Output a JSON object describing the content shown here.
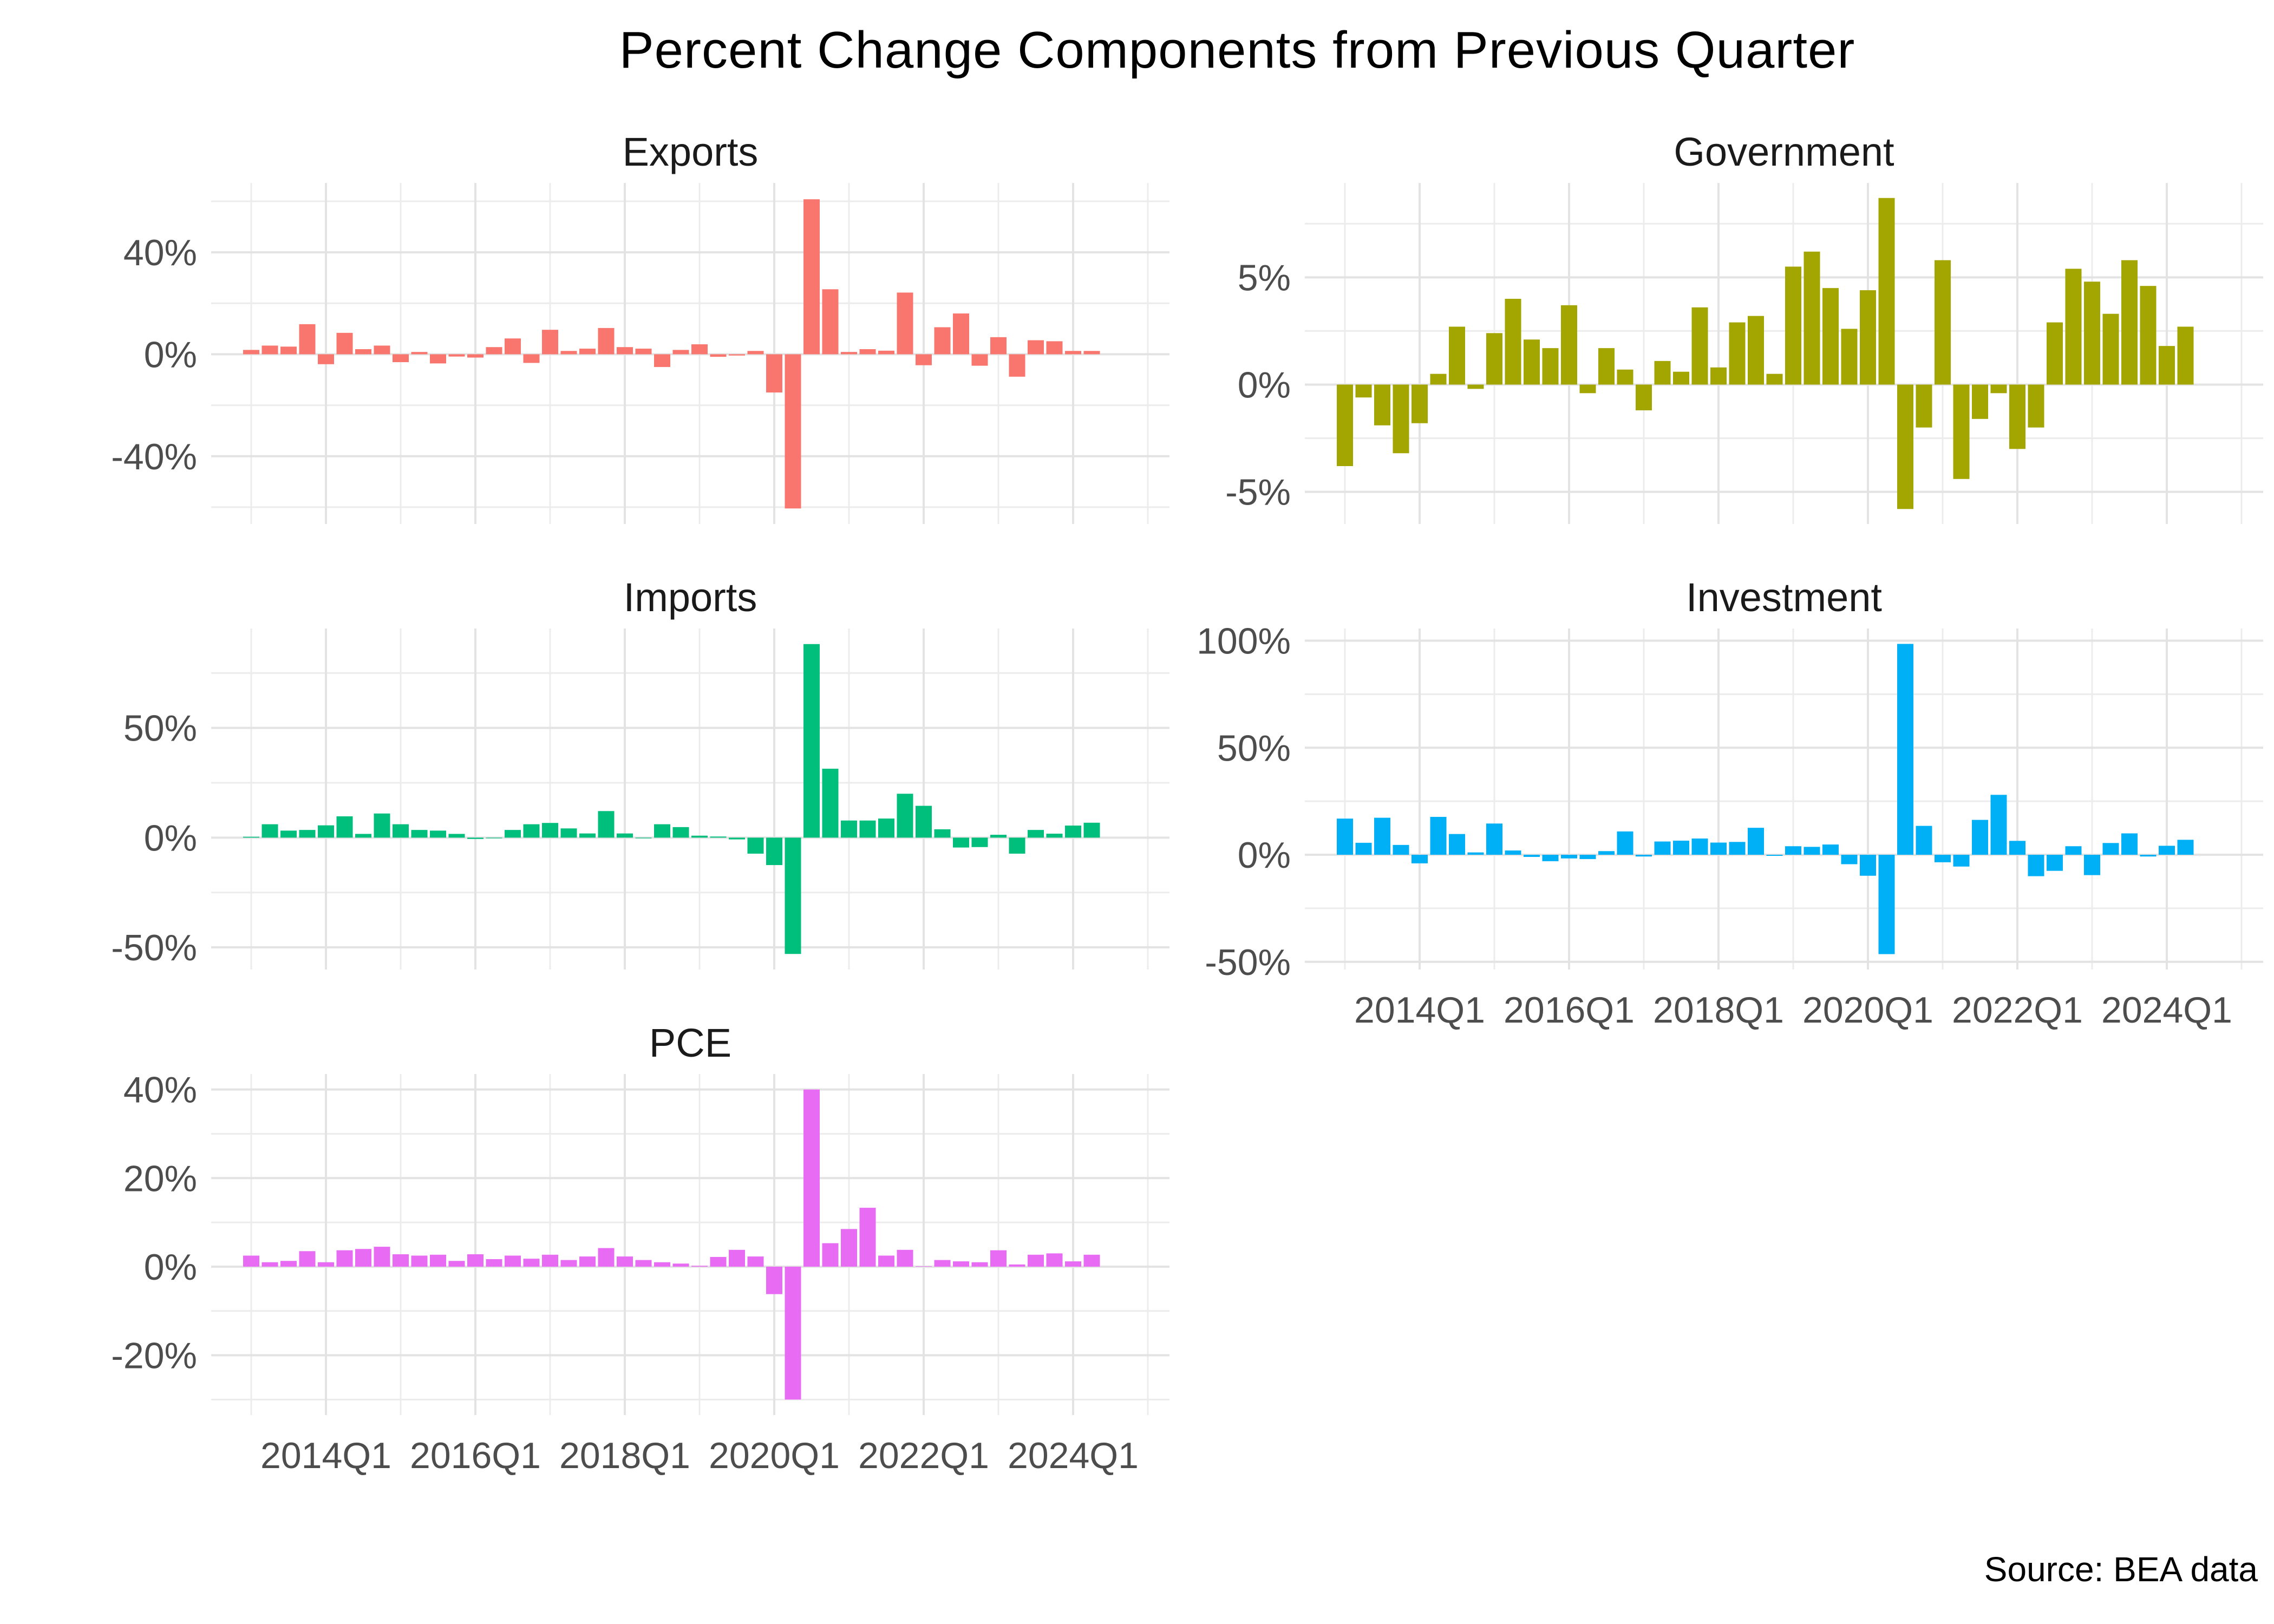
{
  "chart_data": {
    "type": "bar",
    "title": "Percent Change Components from Previous Quarter",
    "source": "Source: BEA data",
    "xlabel": "",
    "ylabel": "",
    "grid": true,
    "legend": "none",
    "facet_layout": "3 rows x 2 cols; Exports,Government / Imports,Investment / PCE,empty",
    "quarters": [
      "2013Q1",
      "2013Q2",
      "2013Q3",
      "2013Q4",
      "2014Q1",
      "2014Q2",
      "2014Q3",
      "2014Q4",
      "2015Q1",
      "2015Q2",
      "2015Q3",
      "2015Q4",
      "2016Q1",
      "2016Q2",
      "2016Q3",
      "2016Q4",
      "2017Q1",
      "2017Q2",
      "2017Q3",
      "2017Q4",
      "2018Q1",
      "2018Q2",
      "2018Q3",
      "2018Q4",
      "2019Q1",
      "2019Q2",
      "2019Q3",
      "2019Q4",
      "2020Q1",
      "2020Q2",
      "2020Q3",
      "2020Q4",
      "2021Q1",
      "2021Q2",
      "2021Q3",
      "2021Q4",
      "2022Q1",
      "2022Q2",
      "2022Q3",
      "2022Q4",
      "2023Q1",
      "2023Q2",
      "2023Q3",
      "2023Q4",
      "2024Q1",
      "2024Q2"
    ],
    "x_tick_labels": [
      "2014Q1",
      "2016Q1",
      "2018Q1",
      "2020Q1",
      "2022Q1",
      "2024Q1"
    ],
    "x_major_years": [
      2014,
      2016,
      2018,
      2020,
      2022,
      2024
    ],
    "x_minor_years": [
      2013,
      2015,
      2017,
      2019,
      2021,
      2023,
      2025
    ],
    "facets": [
      {
        "name": "Exports",
        "color": "#F8766D",
        "row": 0,
        "col": 0,
        "x_axis": false,
        "ylim": [
          -66.6,
          67.2
        ],
        "y_ticks": [
          {
            "value": 40,
            "label": "40%"
          },
          {
            "value": 0,
            "label": "0%"
          },
          {
            "value": -40,
            "label": "-40%"
          }
        ],
        "y_minor": [
          60,
          20,
          -20,
          -60
        ],
        "values": [
          1.7,
          3.4,
          3.0,
          11.8,
          -3.9,
          8.4,
          2.0,
          3.4,
          -3.1,
          0.9,
          -3.6,
          -0.9,
          -1.3,
          2.8,
          6.2,
          -3.4,
          9.6,
          1.3,
          2.2,
          10.3,
          2.8,
          2.2,
          -5.0,
          1.7,
          3.9,
          -1.0,
          -0.5,
          1.3,
          -15.0,
          -60.5,
          60.8,
          25.5,
          0.9,
          2.0,
          1.4,
          24.2,
          -4.3,
          10.6,
          16.0,
          -4.5,
          6.7,
          -8.8,
          5.5,
          5.1,
          1.3,
          1.3
        ]
      },
      {
        "name": "Government",
        "color": "#A3A500",
        "row": 0,
        "col": 1,
        "x_axis": false,
        "ylim": [
          -6.5,
          9.4
        ],
        "y_ticks": [
          {
            "value": 5,
            "label": "5%"
          },
          {
            "value": 0,
            "label": "0%"
          },
          {
            "value": -5,
            "label": "-5%"
          }
        ],
        "y_minor": [
          7.5,
          2.5,
          -2.5
        ],
        "values": [
          -3.8,
          -0.6,
          -1.9,
          -3.2,
          -1.8,
          0.5,
          2.7,
          -0.2,
          2.4,
          4.0,
          2.1,
          1.7,
          3.7,
          -0.4,
          1.7,
          0.7,
          -1.2,
          1.1,
          0.6,
          3.6,
          0.8,
          2.9,
          3.2,
          0.5,
          5.5,
          6.2,
          4.5,
          2.6,
          4.4,
          8.7,
          -5.8,
          -2.0,
          5.8,
          -4.4,
          -1.6,
          -0.4,
          -3.0,
          -2.0,
          2.9,
          5.4,
          4.8,
          3.3,
          5.8,
          4.6,
          1.8,
          2.7
        ]
      },
      {
        "name": "Imports",
        "color": "#00BF7D",
        "row": 1,
        "col": 0,
        "x_axis": false,
        "ylim": [
          -60.1,
          95.3
        ],
        "y_ticks": [
          {
            "value": 50,
            "label": "50%"
          },
          {
            "value": 0,
            "label": "0%"
          },
          {
            "value": -50,
            "label": "-50%"
          }
        ],
        "y_minor": [
          75,
          25,
          -25
        ],
        "values": [
          0.4,
          6.1,
          3.2,
          3.5,
          5.6,
          9.7,
          1.7,
          11.0,
          6.1,
          3.5,
          3.2,
          1.7,
          -0.6,
          -0.3,
          3.5,
          6.1,
          6.7,
          4.2,
          1.9,
          12.1,
          1.9,
          -0.3,
          6.1,
          4.8,
          0.9,
          0.5,
          -0.8,
          -7.3,
          -12.5,
          -53.0,
          88.2,
          31.4,
          7.8,
          7.8,
          8.7,
          20.0,
          14.5,
          3.8,
          -4.5,
          -4.3,
          1.3,
          -7.3,
          3.5,
          1.8,
          5.5,
          6.8
        ]
      },
      {
        "name": "Investment",
        "color": "#00B0F6",
        "row": 1,
        "col": 1,
        "x_axis": true,
        "ylim": [
          -53.6,
          105.7
        ],
        "y_ticks": [
          {
            "value": 100,
            "label": "100%"
          },
          {
            "value": 50,
            "label": "50%"
          },
          {
            "value": 0,
            "label": "0%"
          },
          {
            "value": -50,
            "label": "-50%"
          }
        ],
        "y_minor": [
          75,
          25,
          -25
        ],
        "values": [
          16.9,
          5.6,
          17.3,
          4.6,
          -4.0,
          17.7,
          9.7,
          1.1,
          14.6,
          2.0,
          -1.0,
          -3.0,
          -1.7,
          -2.0,
          1.7,
          10.9,
          -0.8,
          6.2,
          6.6,
          7.6,
          5.7,
          6.0,
          12.6,
          -0.5,
          4.0,
          3.7,
          4.8,
          -4.4,
          -9.8,
          -46.4,
          98.5,
          13.5,
          -3.5,
          -5.5,
          16.3,
          28.0,
          6.5,
          -10.0,
          -7.5,
          4.0,
          -9.5,
          5.5,
          10.0,
          -0.8,
          4.2,
          7.0
        ]
      },
      {
        "name": "PCE",
        "color": "#E76BF3",
        "row": 2,
        "col": 0,
        "x_axis": true,
        "ylim": [
          -33.5,
          43.5
        ],
        "y_ticks": [
          {
            "value": 40,
            "label": "40%"
          },
          {
            "value": 20,
            "label": "20%"
          },
          {
            "value": 0,
            "label": "0%"
          },
          {
            "value": -20,
            "label": "-20%"
          }
        ],
        "y_minor": [
          30,
          10,
          -10,
          -30
        ],
        "values": [
          2.5,
          1.0,
          1.3,
          3.5,
          1.0,
          3.7,
          4.0,
          4.5,
          2.8,
          2.5,
          2.7,
          1.3,
          2.8,
          1.7,
          2.5,
          1.8,
          2.7,
          1.5,
          2.3,
          4.2,
          2.3,
          1.5,
          1.0,
          0.7,
          0.2,
          2.2,
          3.8,
          2.3,
          -6.2,
          -30.0,
          40.0,
          5.3,
          8.5,
          13.3,
          2.5,
          3.8,
          0.1,
          1.5,
          1.2,
          1.0,
          3.7,
          0.5,
          2.7,
          3.0,
          1.2,
          2.7
        ]
      }
    ],
    "style": {
      "panel_background": "#ffffff",
      "grid_major_color": "#E3E3E3",
      "grid_minor_color": "#ECECEC",
      "axis_text_color": "#4D4D4D",
      "facet_text_color": "#1A1A1A",
      "title_color": "#000000"
    }
  }
}
